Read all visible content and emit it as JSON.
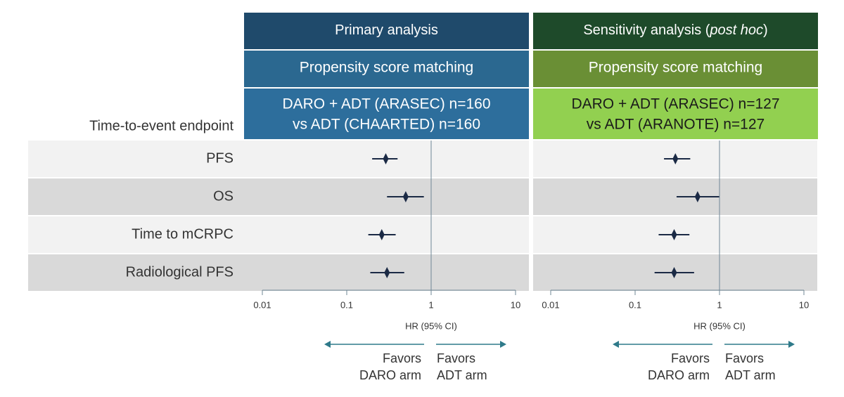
{
  "row_header": "Time-to-event endpoint",
  "endpoints": [
    "PFS",
    "OS",
    "Time to mCRPC",
    "Radiological PFS"
  ],
  "chart_data": [
    {
      "type": "forest",
      "title_runs": [
        {
          "text": "Primary analysis",
          "italic": false
        }
      ],
      "subtitle": "Propensity score matching",
      "comparison": [
        "DARO + ADT (ARASEC) n=160",
        "vs ADT (CHAARTED) n=160"
      ],
      "header_colors": [
        "#1f4a6b",
        "#2b6890",
        "#2d6e9c"
      ],
      "header_text_colors": [
        "#ffffff",
        "#ffffff",
        "#ffffff"
      ],
      "values": [
        0.29,
        0.5,
        0.26,
        0.3
      ],
      "lower": [
        0.2,
        0.3,
        0.18,
        0.19
      ],
      "upper": [
        0.4,
        0.82,
        0.38,
        0.48
      ],
      "marker_color": "#1b2a45",
      "xlim": [
        0.01,
        10
      ],
      "xticks": [
        0.01,
        0.1,
        1,
        10
      ],
      "xscale": "log",
      "reference": 1,
      "xlabel": "HR (95% CI)",
      "favors_left": [
        "Favors",
        "DARO arm"
      ],
      "favors_right": [
        "Favors",
        "ADT arm"
      ],
      "arrow_color": "#2f7a8a"
    },
    {
      "type": "forest",
      "title_runs": [
        {
          "text": "Sensitivity analysis (",
          "italic": false
        },
        {
          "text": "post hoc",
          "italic": true
        },
        {
          "text": ")",
          "italic": false
        }
      ],
      "subtitle": "Propensity score matching",
      "comparison": [
        "DARO + ADT (ARASEC) n=127",
        "vs ADT (ARANOTE) n=127"
      ],
      "header_colors": [
        "#1e4a2a",
        "#6a8f35",
        "#92d050"
      ],
      "header_text_colors": [
        "#ffffff",
        "#ffffff",
        "#1a1a1a"
      ],
      "values": [
        0.3,
        0.55,
        0.29,
        0.29
      ],
      "lower": [
        0.22,
        0.31,
        0.19,
        0.17
      ],
      "upper": [
        0.45,
        0.99,
        0.44,
        0.5
      ],
      "marker_color": "#1b2a45",
      "xlim": [
        0.01,
        10
      ],
      "xticks": [
        0.01,
        0.1,
        1,
        10
      ],
      "xscale": "log",
      "reference": 1,
      "xlabel": "HR (95% CI)",
      "favors_left": [
        "Favors",
        "DARO arm"
      ],
      "favors_right": [
        "Favors",
        "ADT arm"
      ],
      "arrow_color": "#2f7a8a"
    }
  ]
}
